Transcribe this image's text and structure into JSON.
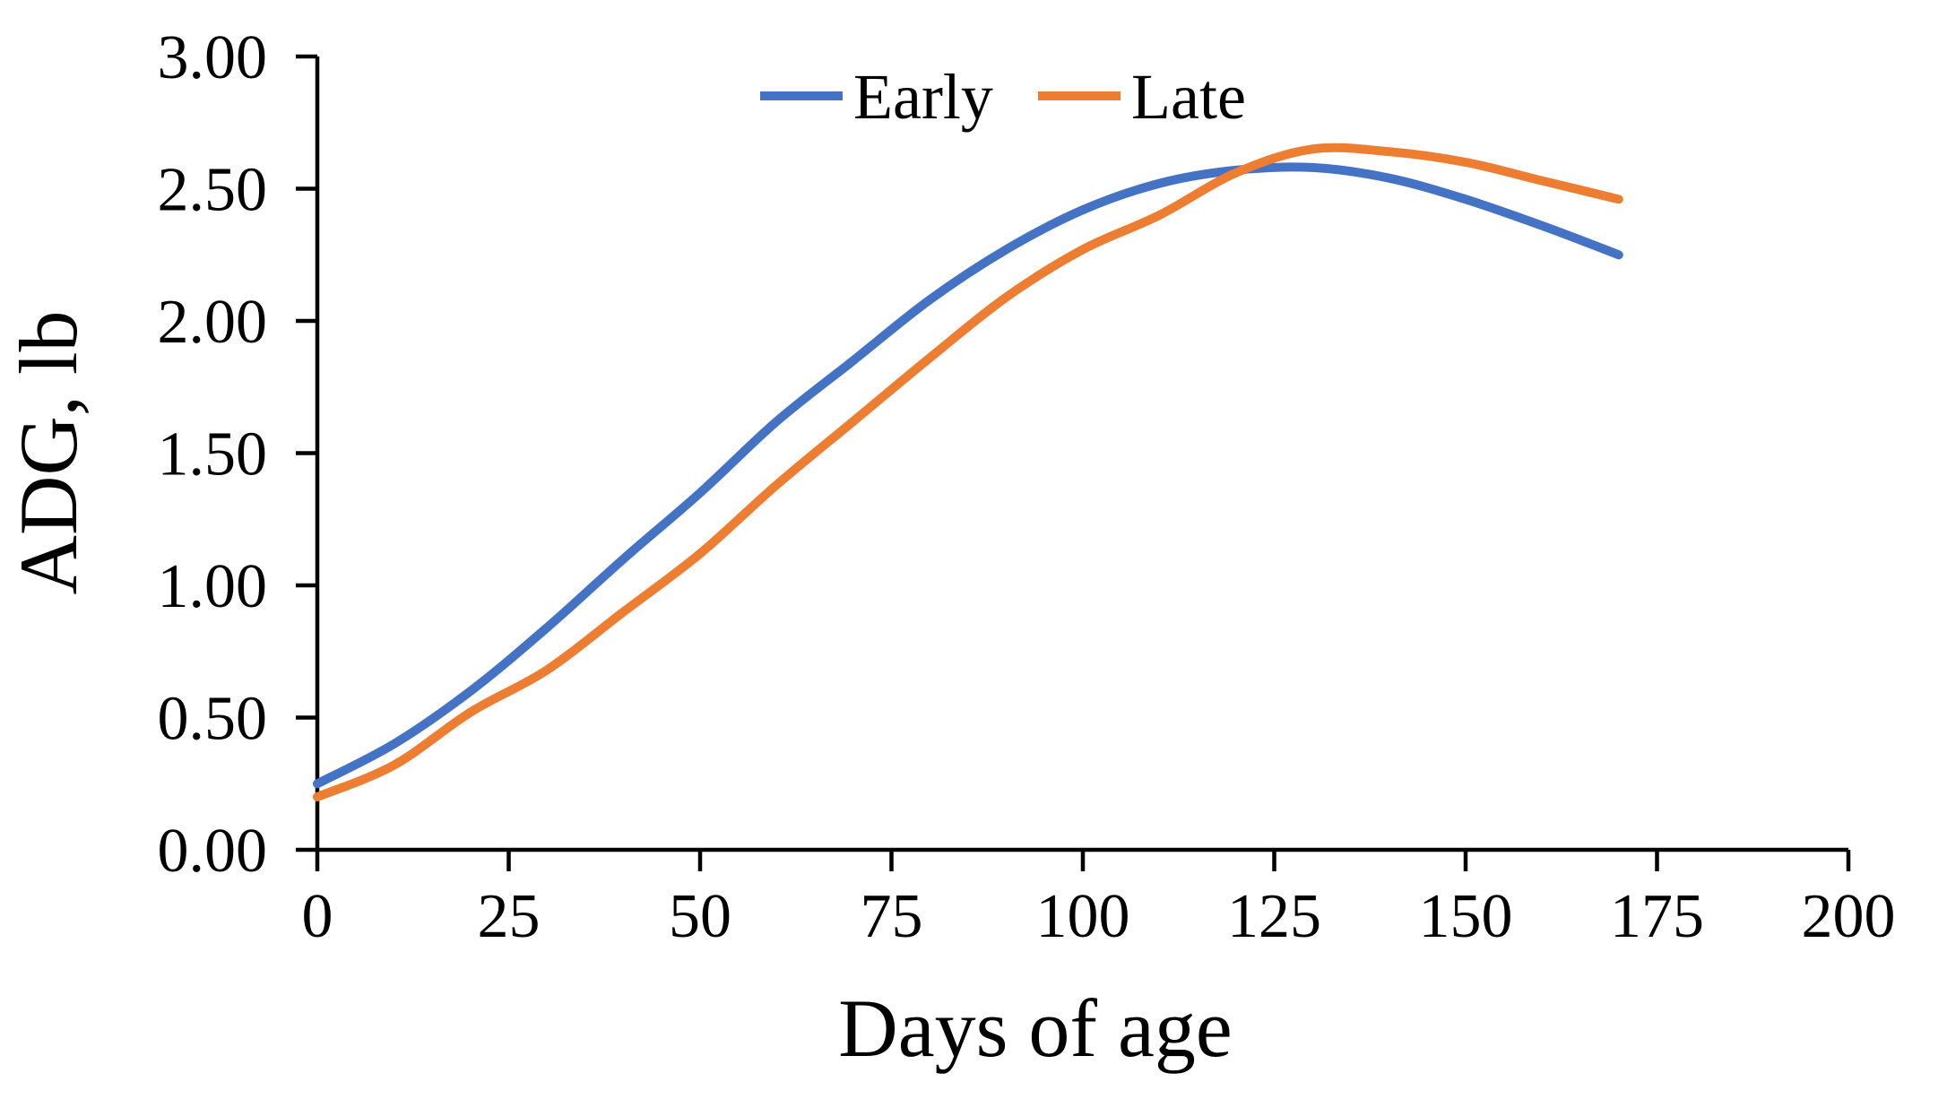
{
  "page": {
    "background": "#ffffff"
  },
  "chart_data": {
    "type": "line",
    "title": "",
    "xlabel": "Days of age",
    "ylabel": "ADG, lb",
    "xlim": [
      0,
      200
    ],
    "ylim": [
      0.0,
      3.0
    ],
    "grid": false,
    "legend_position": "top-center",
    "axis_color": "#000000",
    "x_tick_labels": [
      "0",
      "25",
      "50",
      "75",
      "100",
      "125",
      "150",
      "175",
      "200"
    ],
    "y_tick_labels": [
      "0.00",
      "0.50",
      "1.00",
      "1.50",
      "2.00",
      "2.50",
      "3.00"
    ],
    "x": [
      0,
      10,
      20,
      30,
      40,
      50,
      60,
      70,
      80,
      90,
      100,
      110,
      120,
      130,
      140,
      150,
      160,
      170
    ],
    "series": [
      {
        "name": "Early",
        "color": "#4472C4",
        "values": [
          0.25,
          0.4,
          0.6,
          0.84,
          1.1,
          1.35,
          1.62,
          1.85,
          2.08,
          2.27,
          2.42,
          2.52,
          2.57,
          2.58,
          2.54,
          2.46,
          2.36,
          2.25
        ]
      },
      {
        "name": "Late",
        "color": "#ED7D31",
        "values": [
          0.2,
          0.32,
          0.52,
          0.68,
          0.9,
          1.12,
          1.38,
          1.62,
          1.86,
          2.09,
          2.27,
          2.4,
          2.56,
          2.65,
          2.64,
          2.6,
          2.53,
          2.46
        ]
      }
    ]
  }
}
